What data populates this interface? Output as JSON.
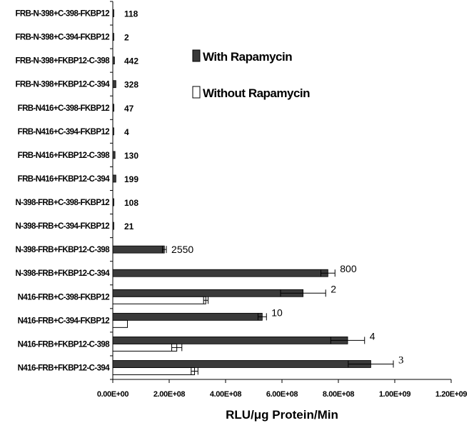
{
  "chart_data": {
    "type": "bar",
    "orientation": "horizontal",
    "categories": [
      "FRB-N-398+C-398-FKBP12",
      "FRB-N-398+C-394-FKBP12",
      "FRB-N-398+FKBP12-C-398",
      "FRB-N-398+FKBP12-C-394",
      "FRB-N416+C-398-FKBP12",
      "FRB-N416+C-394-FKBP12",
      "FRB-N416+FKBP12-C-398",
      "FRB-N416+FKBP12-C-394",
      "N-398-FRB+C-398-FKBP12",
      "N-398-FRB+C-394-FKBP12",
      "N-398-FRB+FKBP12-C-398",
      "N-398-FRB+FKBP12-C-394",
      "N416-FRB+C-398-FKBP12",
      "N416-FRB+C-394-FKBP12",
      "N416-FRB+FKBP12-C-398",
      "N416-FRB+FKBP12-C-394"
    ],
    "series": [
      {
        "name": "With Rapamycin",
        "color": "#3a3a3a",
        "values": [
          3000000,
          1000000,
          6000000,
          11000000,
          4000000,
          1000000,
          8000000,
          11000000,
          4000000,
          2000000,
          183000000,
          763000000,
          675000000,
          530000000,
          833000000,
          915000000
        ],
        "errors": [
          0,
          0,
          0,
          0,
          0,
          0,
          0,
          0,
          0,
          0,
          7000000,
          25000000,
          80000000,
          15000000,
          60000000,
          80000000
        ]
      },
      {
        "name": "Without Rapamycin",
        "color": "#ffffff",
        "values": [
          0,
          0,
          0,
          0,
          0,
          0,
          0,
          0,
          0,
          0,
          0,
          0,
          330000000,
          52000000,
          227000000,
          290000000
        ],
        "errors": [
          0,
          0,
          0,
          0,
          0,
          0,
          0,
          0,
          0,
          0,
          0,
          0,
          8000000,
          0,
          18000000,
          12000000
        ]
      }
    ],
    "ratio_labels": [
      "118",
      "2",
      "442",
      "328",
      "47",
      "4",
      "130",
      "199",
      "108",
      "21",
      "2550",
      "800",
      "2",
      "10",
      "4",
      "3"
    ],
    "xlabel": "RLU/μg Protein/Min",
    "xlim": [
      0,
      1200000000
    ],
    "xticks": [
      0,
      200000000,
      400000000,
      600000000,
      800000000,
      1000000000,
      1200000000
    ],
    "xtick_labels": [
      "0.00E+00",
      "2.00E+08",
      "4.00E+08",
      "6.00E+08",
      "8.00E+08",
      "1.00E+09",
      "1.20E+09"
    ],
    "legend": [
      {
        "label": "With Rapamycin",
        "color": "#3a3a3a"
      },
      {
        "label": "Without Rapamycin",
        "color": "#ffffff"
      }
    ],
    "legend_position": "upper-right",
    "grid": false
  }
}
